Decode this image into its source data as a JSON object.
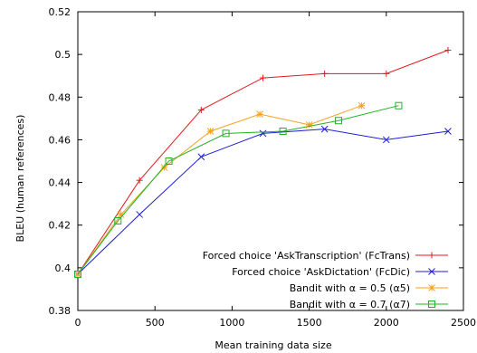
{
  "chart_data": {
    "type": "line",
    "xlabel": "Mean training data size",
    "ylabel": "BLEU (human references)",
    "xlim": [
      0,
      2500
    ],
    "ylim": [
      0.38,
      0.52
    ],
    "x_ticks": [
      0,
      500,
      1000,
      1500,
      2000,
      2500
    ],
    "y_ticks": [
      0.38,
      0.4,
      0.42,
      0.44,
      0.46,
      0.48,
      0.5,
      0.52
    ],
    "x_tick_labels": [
      "0",
      "500",
      "1000",
      "1500",
      "2000",
      "2500"
    ],
    "y_tick_labels": [
      "0.38",
      "0.4",
      "0.42",
      "0.44",
      "0.46",
      "0.48",
      "0.5",
      "0.52"
    ],
    "grid": false,
    "legend_position": "bottom-right",
    "series": [
      {
        "name": "Forced choice 'AskTranscription' (FcTrans)",
        "color": "#e31a1c",
        "marker": "plus",
        "x": [
          0,
          400,
          800,
          1200,
          1600,
          2000,
          2400
        ],
        "y": [
          0.397,
          0.441,
          0.474,
          0.489,
          0.491,
          0.491,
          0.502
        ]
      },
      {
        "name": "Forced choice 'AskDictation' (FcDic)",
        "color": "#1f1fd6",
        "marker": "x",
        "x": [
          0,
          400,
          800,
          1200,
          1600,
          2000,
          2400
        ],
        "y": [
          0.397,
          0.425,
          0.452,
          0.463,
          0.465,
          0.46,
          0.464
        ]
      },
      {
        "name": "Bandit with α = 0.5 (α5)",
        "color": "#f7a21b",
        "marker": "star",
        "x": [
          0,
          280,
          560,
          860,
          1180,
          1500,
          1840
        ],
        "y": [
          0.397,
          0.425,
          0.447,
          0.464,
          0.472,
          0.467,
          0.476
        ]
      },
      {
        "name": "Bandit with α = 0.7 (α7)",
        "color": "#22b322",
        "marker": "square",
        "x": [
          0,
          260,
          590,
          960,
          1330,
          1690,
          2080
        ],
        "y": [
          0.397,
          0.422,
          0.45,
          0.463,
          0.464,
          0.469,
          0.476
        ]
      }
    ]
  }
}
